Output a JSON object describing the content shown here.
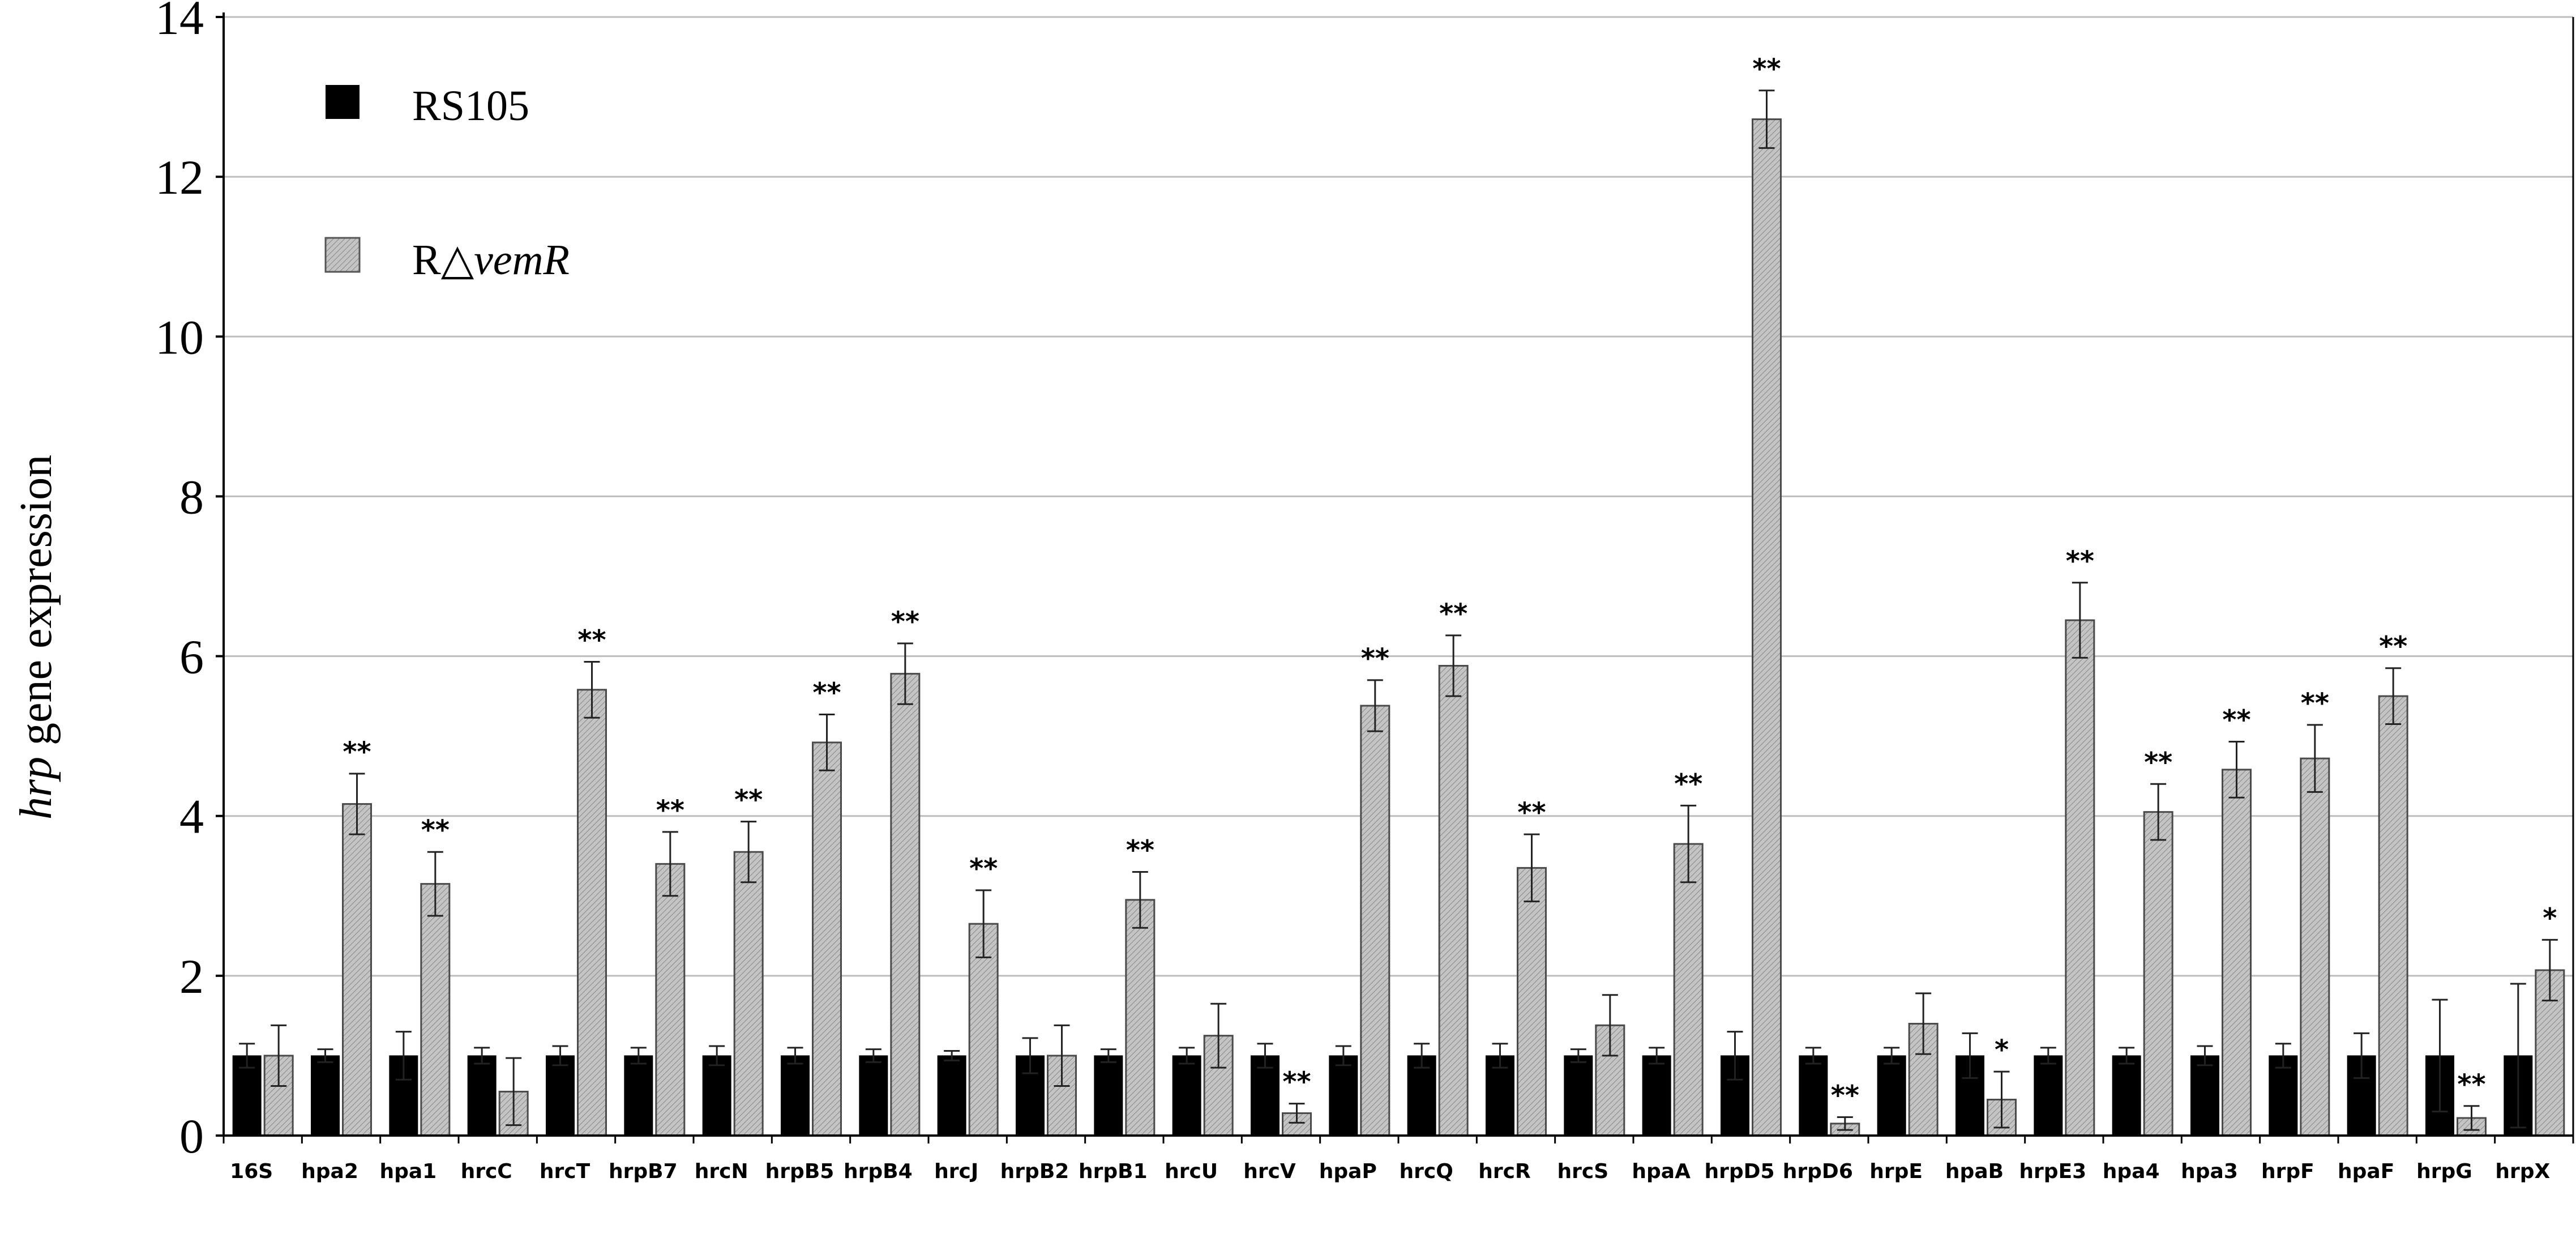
{
  "chart_data": {
    "type": "bar",
    "ylabel_italic": "hrp",
    "ylabel_rest": " gene expression",
    "ylim": [
      0,
      14
    ],
    "yticks": [
      0,
      2,
      4,
      6,
      8,
      10,
      12,
      14
    ],
    "grid": true,
    "legend_position": "top-left",
    "categories": [
      "16S",
      "hpa2",
      "hpa1",
      "hrcC",
      "hrcT",
      "hrpB7",
      "hrcN",
      "hrpB5",
      "hrpB4",
      "hrcJ",
      "hrpB2",
      "hrpB1",
      "hrcU",
      "hrcV",
      "hpaP",
      "hrcQ",
      "hrcR",
      "hrcS",
      "hpaA",
      "hrpD5",
      "hrpD6",
      "hrpE",
      "hpaB",
      "hrpE3",
      "hpa4",
      "hpa3",
      "hrpF",
      "hpaF",
      "hrpG",
      "hrpX"
    ],
    "series": [
      {
        "name": "RS105",
        "color": "#000000",
        "values": [
          1,
          1,
          1,
          1,
          1,
          1,
          1,
          1,
          1,
          1,
          1,
          1,
          1,
          1,
          1,
          1,
          1,
          1,
          1,
          1,
          1,
          1,
          1,
          1,
          1,
          1,
          1,
          1,
          1,
          1
        ],
        "errors": [
          0.15,
          0.08,
          0.3,
          0.1,
          0.12,
          0.1,
          0.12,
          0.1,
          0.08,
          0.06,
          0.22,
          0.08,
          0.1,
          0.15,
          0.12,
          0.15,
          0.15,
          0.08,
          0.1,
          0.3,
          0.1,
          0.1,
          0.28,
          0.1,
          0.1,
          0.12,
          0.15,
          0.28,
          0.7,
          0.9
        ]
      },
      {
        "name_prefix": "R",
        "name_symbol": "△",
        "name_italic": "vemR",
        "color": "#b5b5b5",
        "values": [
          1,
          4.15,
          3.15,
          0.55,
          5.58,
          3.4,
          3.55,
          4.92,
          5.78,
          2.65,
          1,
          2.95,
          1.25,
          0.28,
          5.38,
          5.88,
          3.35,
          1.38,
          3.65,
          12.72,
          0.15,
          1.4,
          0.45,
          6.45,
          4.05,
          4.58,
          4.72,
          5.5,
          0.22,
          2.07
        ],
        "errors": [
          0.38,
          0.38,
          0.4,
          0.42,
          0.35,
          0.4,
          0.38,
          0.35,
          0.38,
          0.42,
          0.38,
          0.35,
          0.4,
          0.12,
          0.32,
          0.38,
          0.42,
          0.38,
          0.48,
          0.36,
          0.08,
          0.38,
          0.35,
          0.47,
          0.35,
          0.35,
          0.42,
          0.35,
          0.15,
          0.38
        ]
      }
    ],
    "significance": [
      "",
      "**",
      "**",
      "",
      "**",
      "**",
      "**",
      "**",
      "**",
      "**",
      "",
      "**",
      "",
      "**",
      "**",
      "**",
      "**",
      "",
      "**",
      "**",
      "**",
      "",
      "*",
      "**",
      "**",
      "**",
      "**",
      "**",
      "**",
      "*"
    ]
  }
}
